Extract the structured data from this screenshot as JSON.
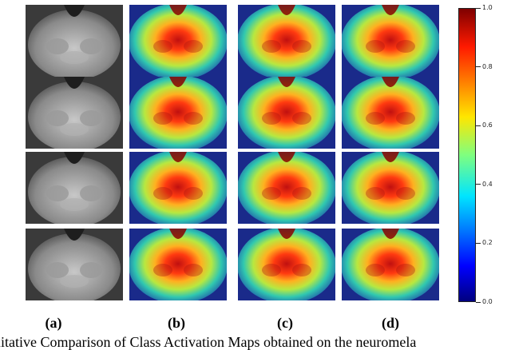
{
  "figure": {
    "columns": [
      {
        "id": "a",
        "label": "(a)",
        "kind": "mri"
      },
      {
        "id": "b",
        "label": "(b)",
        "kind": "cam"
      },
      {
        "id": "c",
        "label": "(c)",
        "kind": "cam"
      },
      {
        "id": "d",
        "label": "(d)",
        "kind": "cam"
      }
    ],
    "row_count": 4,
    "colorbar": {
      "colormap": "jet",
      "range": [
        0.0,
        1.0
      ],
      "ticks": [
        "0.0",
        "0.2",
        "0.4",
        "0.6",
        "0.8",
        "1.0"
      ]
    },
    "caption_visible": "litative Comparison of Class Activation Maps obtained on the neuromela"
  }
}
